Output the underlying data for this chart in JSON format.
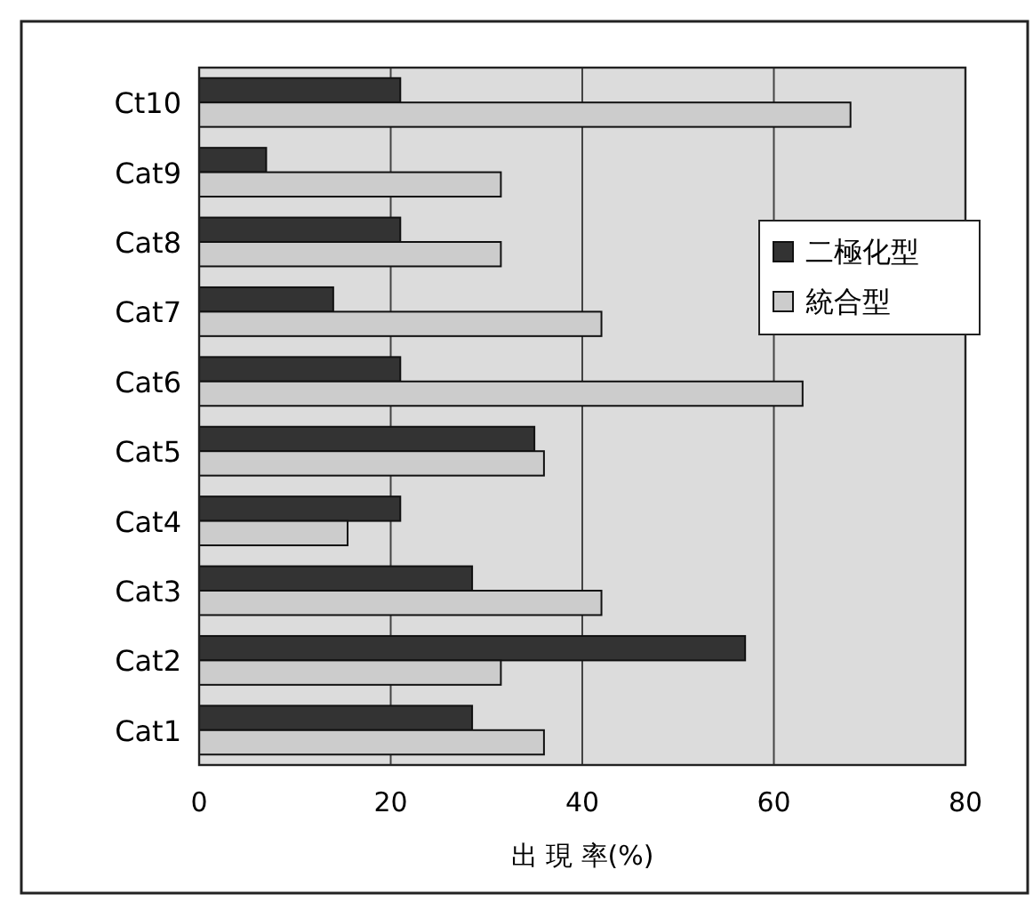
{
  "chart_data": {
    "type": "bar",
    "orientation": "horizontal",
    "xlabel": "出 現 率(%)",
    "categories": [
      "Ct10",
      "Cat9",
      "Cat8",
      "Cat7",
      "Cat6",
      "Cat5",
      "Cat4",
      "Cat3",
      "Cat2",
      "Cat1"
    ],
    "series": [
      {
        "name": "二極化型",
        "color": "#333333",
        "values": [
          21,
          7,
          21,
          14,
          21,
          35,
          21,
          28.5,
          57,
          28.5
        ]
      },
      {
        "name": "統合型",
        "color": "#cccccc",
        "values": [
          68,
          31.5,
          31.5,
          42,
          63,
          36,
          15.5,
          42,
          31.5,
          36
        ]
      }
    ],
    "xlim": [
      0,
      80
    ],
    "xticks": [
      0,
      20,
      40,
      60,
      80
    ],
    "grid": "x",
    "legend": "right"
  }
}
